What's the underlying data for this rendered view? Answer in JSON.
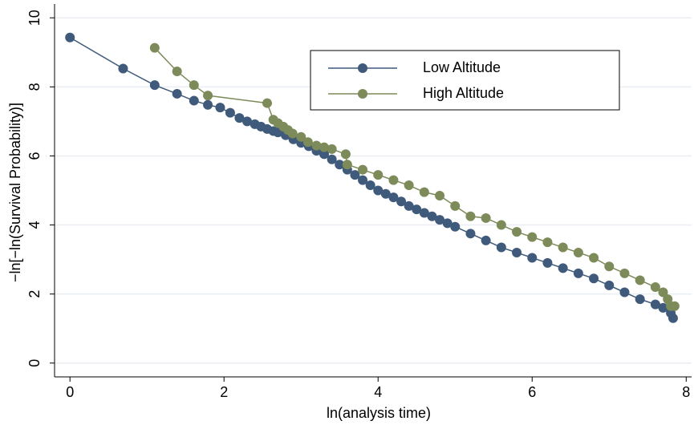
{
  "chart_data": {
    "type": "line",
    "xlabel": "ln(analysis time)",
    "ylabel": "−ln[−ln(Survival Probability)]",
    "xlim": [
      -0.2,
      8.07
    ],
    "ylim": [
      -0.4,
      10.4
    ],
    "xticks": [
      0,
      2,
      4,
      6,
      8
    ],
    "yticks": [
      0,
      2,
      4,
      6,
      8,
      10
    ],
    "grid": true,
    "legend": "top-right",
    "series": [
      {
        "name": "Low Altitude",
        "color": "#3f5a7a",
        "x": [
          0,
          0.69,
          1.1,
          1.39,
          1.61,
          1.79,
          1.95,
          2.08,
          2.2,
          2.3,
          2.4,
          2.48,
          2.56,
          2.64,
          2.7,
          2.8,
          2.9,
          3.0,
          3.1,
          3.2,
          3.3,
          3.4,
          3.5,
          3.6,
          3.7,
          3.8,
          3.9,
          4.0,
          4.1,
          4.2,
          4.3,
          4.4,
          4.5,
          4.6,
          4.7,
          4.8,
          4.9,
          5.0,
          5.2,
          5.4,
          5.6,
          5.8,
          6.0,
          6.2,
          6.4,
          6.6,
          6.8,
          7.0,
          7.2,
          7.4,
          7.6,
          7.7,
          7.8,
          7.83
        ],
        "values": [
          9.43,
          8.53,
          8.05,
          7.8,
          7.6,
          7.48,
          7.4,
          7.25,
          7.1,
          7.0,
          6.92,
          6.85,
          6.78,
          6.72,
          6.68,
          6.6,
          6.48,
          6.38,
          6.28,
          6.15,
          6.05,
          5.9,
          5.75,
          5.6,
          5.45,
          5.3,
          5.15,
          5.0,
          4.9,
          4.8,
          4.68,
          4.55,
          4.45,
          4.35,
          4.25,
          4.15,
          4.05,
          3.95,
          3.75,
          3.55,
          3.35,
          3.2,
          3.05,
          2.9,
          2.75,
          2.6,
          2.45,
          2.25,
          2.05,
          1.85,
          1.7,
          1.6,
          1.45,
          1.3
        ]
      },
      {
        "name": "High Altitude",
        "color": "#7d8a5a",
        "x": [
          1.1,
          1.39,
          1.61,
          1.79,
          2.56,
          2.64,
          2.7,
          2.77,
          2.83,
          2.89,
          3.0,
          3.09,
          3.2,
          3.3,
          3.4,
          3.58,
          3.6,
          3.8,
          4.0,
          4.2,
          4.4,
          4.6,
          4.8,
          5.0,
          5.2,
          5.4,
          5.6,
          5.8,
          6.0,
          6.2,
          6.4,
          6.6,
          6.8,
          7.0,
          7.2,
          7.4,
          7.6,
          7.7,
          7.76,
          7.8,
          7.85
        ],
        "values": [
          9.13,
          8.45,
          8.05,
          7.75,
          7.53,
          7.05,
          6.95,
          6.85,
          6.75,
          6.65,
          6.55,
          6.4,
          6.3,
          6.25,
          6.2,
          6.05,
          5.75,
          5.6,
          5.45,
          5.3,
          5.15,
          4.95,
          4.85,
          4.55,
          4.25,
          4.2,
          4.0,
          3.8,
          3.65,
          3.5,
          3.35,
          3.2,
          3.05,
          2.8,
          2.6,
          2.4,
          2.2,
          2.05,
          1.85,
          1.65,
          1.65
        ]
      }
    ]
  }
}
